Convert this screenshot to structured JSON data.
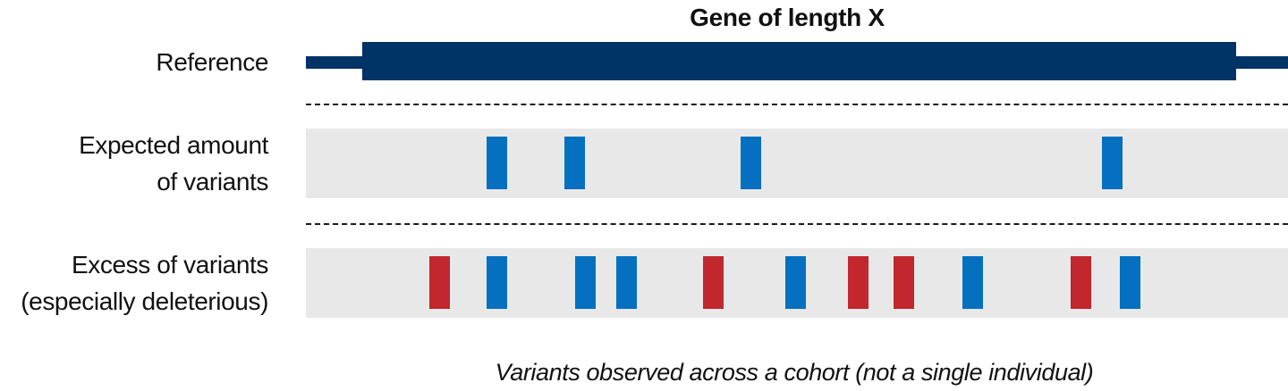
{
  "title": "Gene of length X",
  "reference_label": "Reference",
  "expected_label": [
    "Expected amount",
    "of variants"
  ],
  "excess_label": [
    "Excess of variants",
    "(especially deleterious)"
  ],
  "caption": "Variants observed across a cohort (not a single individual)",
  "colors": {
    "reference": "#003366",
    "band": "#e8e8e8",
    "benign": "#0570c0",
    "deleterious": "#c1272d"
  },
  "expected_variants": [
    {
      "type": "benign"
    },
    {
      "type": "benign"
    },
    {
      "type": "benign"
    },
    {
      "type": "benign"
    }
  ],
  "excess_variants": [
    {
      "type": "deleterious"
    },
    {
      "type": "benign"
    },
    {
      "type": "benign"
    },
    {
      "type": "benign"
    },
    {
      "type": "deleterious"
    },
    {
      "type": "benign"
    },
    {
      "type": "deleterious"
    },
    {
      "type": "deleterious"
    },
    {
      "type": "benign"
    },
    {
      "type": "deleterious"
    },
    {
      "type": "benign"
    }
  ]
}
